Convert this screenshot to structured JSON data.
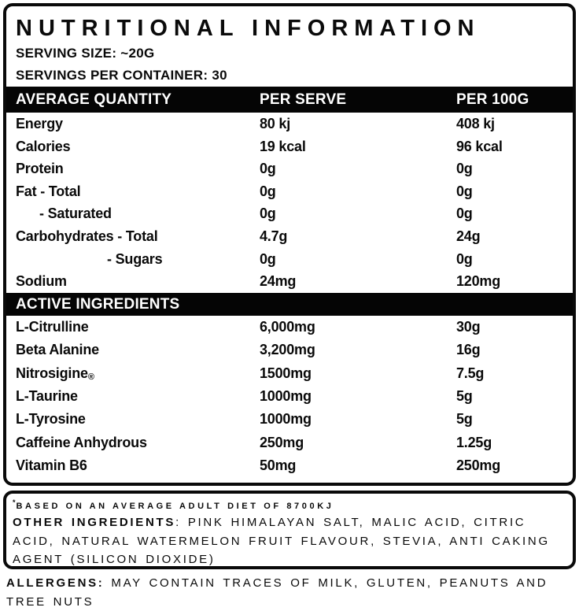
{
  "title": "NUTRITIONAL INFORMATION",
  "serving_size": "SERVING SIZE: ~20G",
  "servings_per_container": "SERVINGS PER CONTAINER: 30",
  "table": {
    "headers": [
      "AVERAGE QUANTITY",
      "PER SERVE",
      "PER 100G"
    ],
    "nutrition_rows": [
      {
        "label": "Energy",
        "per_serve": "80 kj",
        "per_100g": "408 kj"
      },
      {
        "label": "Calories",
        "per_serve": "19 kcal",
        "per_100g": "96 kcal"
      },
      {
        "label": "Protein",
        "per_serve": "0g",
        "per_100g": "0g"
      },
      {
        "label": "Fat - Total",
        "per_serve": "0g",
        "per_100g": "0g"
      },
      {
        "label": "- Saturated",
        "per_serve": "0g",
        "per_100g": "0g"
      },
      {
        "label": "Carbohydrates - Total",
        "per_serve": "4.7g",
        "per_100g": "24g"
      },
      {
        "label": "- Sugars",
        "per_serve": "0g",
        "per_100g": "0g"
      },
      {
        "label": "Sodium",
        "per_serve": "24mg",
        "per_100g": "120mg"
      }
    ],
    "active_ingredients_header": "ACTIVE INGREDIENTS",
    "active_rows": [
      {
        "label": "L-Citrulline",
        "per_serve": "6,000mg",
        "per_100g": "30g"
      },
      {
        "label": "Beta Alanine",
        "per_serve": "3,200mg",
        "per_100g": "16g"
      },
      {
        "label": "Nitrosigine",
        "mark": "®",
        "per_serve": "1500mg",
        "per_100g": "7.5g"
      },
      {
        "label": "L-Taurine",
        "per_serve": "1000mg",
        "per_100g": "5g"
      },
      {
        "label": "L-Tyrosine",
        "per_serve": "1000mg",
        "per_100g": "5g"
      },
      {
        "label": "Caffeine Anhydrous",
        "per_serve": "250mg",
        "per_100g": "1.25g"
      },
      {
        "label": "Vitamin B6",
        "per_serve": "50mg",
        "per_100g": "250mg"
      }
    ]
  },
  "footnotes": {
    "asterisk": "*",
    "based_on": "BASED ON AN AVERAGE ADULT DIET OF 8700KJ",
    "other_ingredients_label": "OTHER INGREDIENTS",
    "other_ingredients_text": ": PINK HIMALAYAN SALT, MALIC ACID, CITRIC ACID, NATURAL WATERMELON FRUIT FLAVOUR, STEVIA, ANTI CAKING AGENT (SILICON DIOXIDE)"
  },
  "allergens": {
    "label": "ALLERGENS:",
    "text": " MAY CONTAIN TRACES OF MILK, GLUTEN, PEANUTS AND TREE NUTS"
  },
  "colors": {
    "ink": "#0a0a0a",
    "bar_background": "#050505",
    "bar_text": "#ffffff",
    "background": "#ffffff"
  }
}
